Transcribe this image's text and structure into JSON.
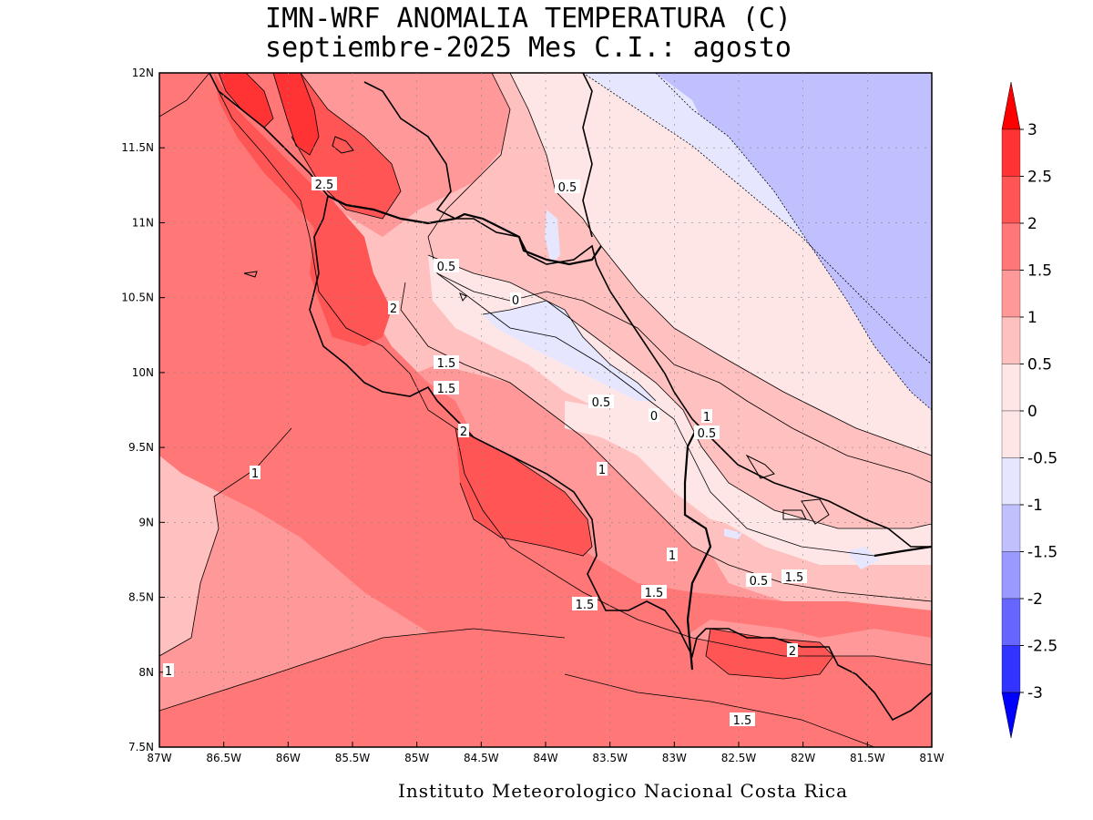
{
  "title": {
    "line1": "IMN-WRF  ANOMALIA TEMPERATURA (C)",
    "line2": "septiembre-2025 Mes C.I.: agosto"
  },
  "credit": "Instituto Meteorologico Nacional Costa Rica",
  "axes": {
    "x_ticks": [
      "87W",
      "86.5W",
      "86W",
      "85.5W",
      "85W",
      "84.5W",
      "84W",
      "83.5W",
      "83W",
      "82.5W",
      "82W",
      "81.5W",
      "81W"
    ],
    "y_ticks": [
      "12N",
      "11.5N",
      "11N",
      "10.5N",
      "10N",
      "9.5N",
      "9N",
      "8.5N",
      "8N",
      "7.5N"
    ]
  },
  "colorbar": {
    "labels": [
      "3",
      "2.5",
      "2",
      "1.5",
      "1",
      "0.5",
      "0",
      "-0.5",
      "-1",
      "-1.5",
      "-2",
      "-2.5",
      "-3"
    ],
    "colors": [
      "#ff0000",
      "#ff3333",
      "#ff5555",
      "#ff7777",
      "#ff9999",
      "#ffc0c0",
      "#ffe6e6",
      "#e6e6ff",
      "#c0c0ff",
      "#9999ff",
      "#6666ff",
      "#3333ff",
      "#0000ff"
    ]
  },
  "contour_labels": [
    "2.5",
    "0.5",
    "0.5",
    "0",
    "2",
    "1.5",
    "1.5",
    "0.5",
    "0",
    "1",
    "0.5",
    "2",
    "1",
    "1",
    "1",
    "0.5",
    "1.5",
    "1.5",
    "1.5",
    "2",
    "1",
    "1.5"
  ],
  "map_data": {
    "region": "Costa Rica",
    "extent": {
      "lon": [
        -87,
        -81
      ],
      "lat": [
        7.5,
        12
      ]
    },
    "field": "temperature anomaly (C)"
  }
}
